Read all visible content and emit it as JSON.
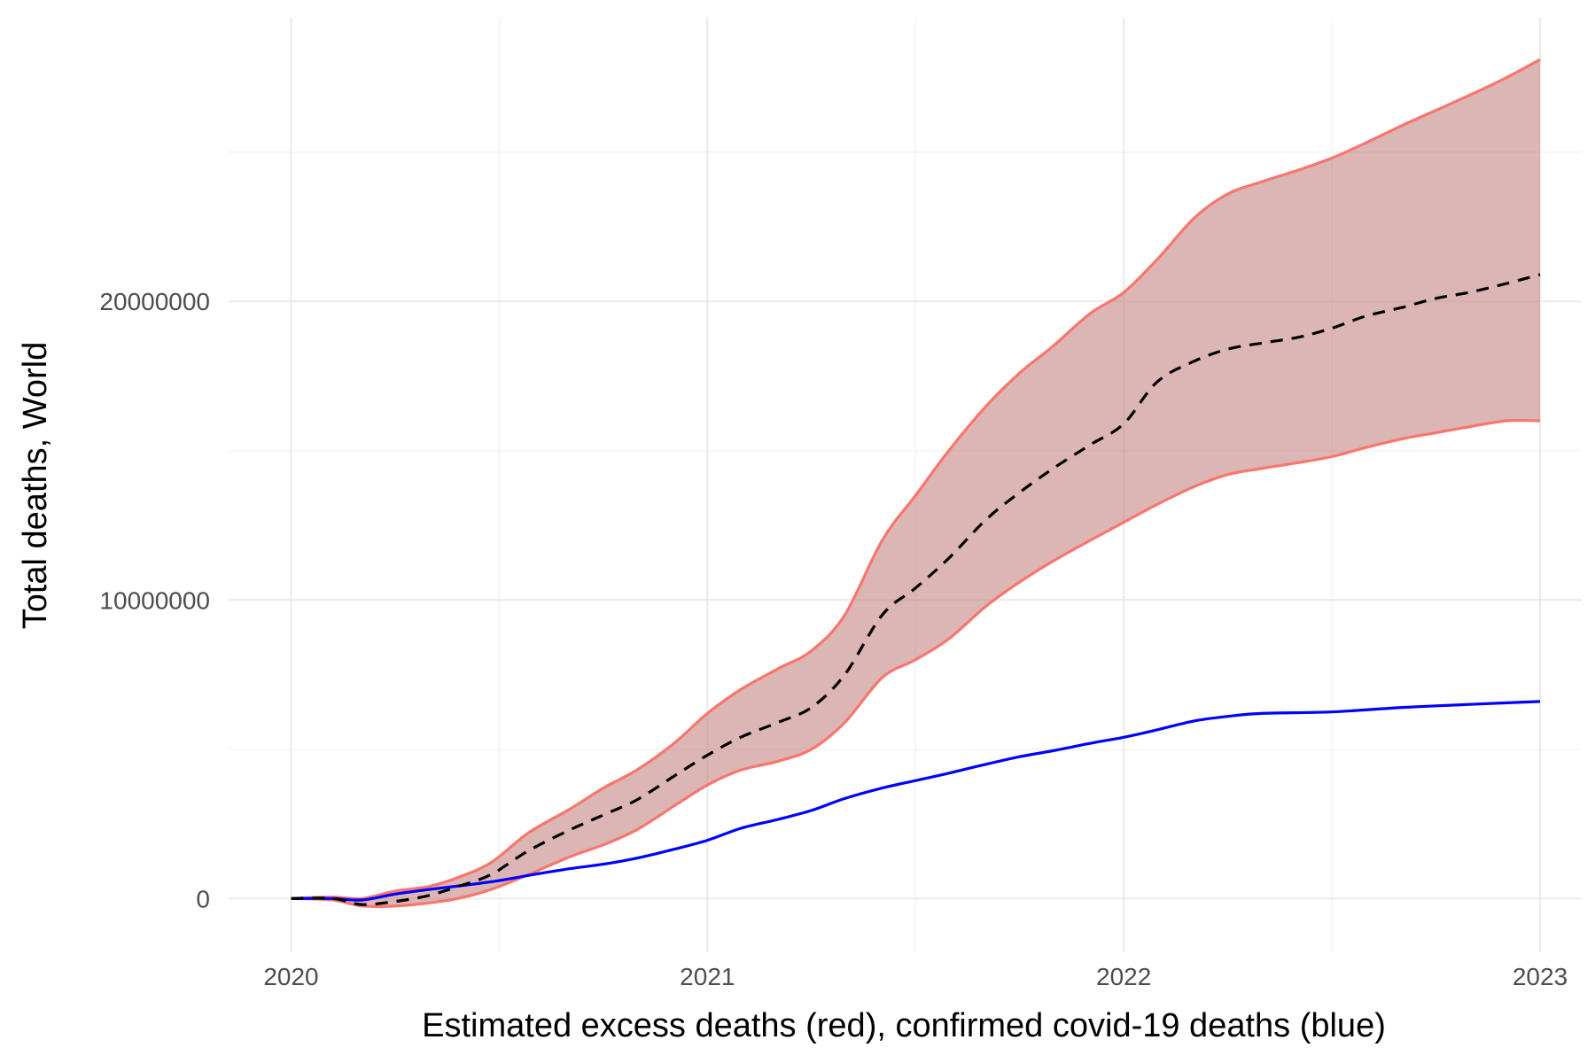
{
  "chart_data": {
    "type": "line",
    "xlabel": "Estimated excess deaths (red), confirmed covid-19 deaths (blue)",
    "ylabel": "Total deaths, World",
    "xlim": [
      2019.85,
      2023.1
    ],
    "ylim": [
      -1800000,
      29500000
    ],
    "x_ticks": [
      2020,
      2021,
      2022,
      2023
    ],
    "x_tick_labels": [
      "2020",
      "2021",
      "2022",
      "2023"
    ],
    "y_ticks": [
      0,
      10000000,
      20000000
    ],
    "y_tick_labels": [
      "0",
      "10000000",
      "20000000"
    ],
    "x_minor": [
      2020.5,
      2021.5,
      2022.5
    ],
    "y_minor": [
      5000000,
      15000000,
      25000000
    ],
    "grid": true,
    "legend": "none",
    "colors": {
      "band_fill": "#c48383",
      "band_edge": "#f8766d",
      "central": "#000000",
      "confirmed": "#0000ff"
    },
    "series": [
      {
        "role": "excess-upper",
        "x": [
          2020.0,
          2020.1,
          2020.17,
          2020.25,
          2020.33,
          2020.4,
          2020.48,
          2020.57,
          2020.67,
          2020.75,
          2020.83,
          2020.92,
          2021.0,
          2021.08,
          2021.17,
          2021.25,
          2021.33,
          2021.42,
          2021.5,
          2021.58,
          2021.67,
          2021.75,
          2021.83,
          2021.92,
          2022.0,
          2022.08,
          2022.17,
          2022.25,
          2022.33,
          2022.42,
          2022.5,
          2022.58,
          2022.67,
          2022.75,
          2022.83,
          2022.92,
          2023.0
        ],
        "values": [
          0,
          50000,
          0,
          250000,
          400000,
          700000,
          1200000,
          2200000,
          3000000,
          3700000,
          4300000,
          5200000,
          6200000,
          7000000,
          7700000,
          8300000,
          9500000,
          12000000,
          13500000,
          15000000,
          16500000,
          17600000,
          18500000,
          19600000,
          20300000,
          21400000,
          22800000,
          23600000,
          24000000,
          24400000,
          24800000,
          25300000,
          25900000,
          26400000,
          26900000,
          27500000,
          28100000
        ]
      },
      {
        "role": "excess-central",
        "x": [
          2020.0,
          2020.1,
          2020.17,
          2020.25,
          2020.33,
          2020.4,
          2020.48,
          2020.57,
          2020.67,
          2020.75,
          2020.83,
          2020.92,
          2021.0,
          2021.08,
          2021.17,
          2021.25,
          2021.33,
          2021.42,
          2021.5,
          2021.58,
          2021.67,
          2021.75,
          2021.83,
          2021.92,
          2022.0,
          2022.08,
          2022.17,
          2022.25,
          2022.33,
          2022.42,
          2022.5,
          2022.58,
          2022.67,
          2022.75,
          2022.83,
          2022.92,
          2023.0
        ],
        "values": [
          0,
          0,
          -200000,
          -100000,
          100000,
          400000,
          800000,
          1600000,
          2300000,
          2800000,
          3300000,
          4100000,
          4800000,
          5400000,
          5900000,
          6400000,
          7500000,
          9500000,
          10400000,
          11400000,
          12700000,
          13600000,
          14400000,
          15200000,
          15900000,
          17300000,
          18000000,
          18400000,
          18600000,
          18800000,
          19100000,
          19500000,
          19800000,
          20100000,
          20300000,
          20600000,
          20900000
        ]
      },
      {
        "role": "excess-lower",
        "x": [
          2020.0,
          2020.1,
          2020.17,
          2020.25,
          2020.33,
          2020.4,
          2020.48,
          2020.57,
          2020.67,
          2020.75,
          2020.83,
          2020.92,
          2021.0,
          2021.08,
          2021.17,
          2021.25,
          2021.33,
          2021.42,
          2021.5,
          2021.58,
          2021.67,
          2021.75,
          2021.83,
          2021.92,
          2022.0,
          2022.08,
          2022.17,
          2022.25,
          2022.33,
          2022.42,
          2022.5,
          2022.58,
          2022.67,
          2022.75,
          2022.83,
          2022.92,
          2023.0
        ],
        "values": [
          0,
          -50000,
          -250000,
          -250000,
          -150000,
          0,
          300000,
          800000,
          1400000,
          1800000,
          2300000,
          3100000,
          3800000,
          4300000,
          4600000,
          5000000,
          5900000,
          7400000,
          8000000,
          8700000,
          9800000,
          10600000,
          11300000,
          12000000,
          12600000,
          13200000,
          13800000,
          14200000,
          14400000,
          14600000,
          14800000,
          15100000,
          15400000,
          15600000,
          15800000,
          16000000,
          16000000
        ]
      },
      {
        "role": "confirmed",
        "x": [
          2020.0,
          2020.1,
          2020.17,
          2020.25,
          2020.33,
          2020.42,
          2020.5,
          2020.58,
          2020.67,
          2020.75,
          2020.83,
          2020.92,
          2021.0,
          2021.08,
          2021.17,
          2021.25,
          2021.33,
          2021.42,
          2021.5,
          2021.58,
          2021.67,
          2021.75,
          2021.83,
          2021.92,
          2022.0,
          2022.08,
          2022.17,
          2022.25,
          2022.33,
          2022.5,
          2022.67,
          2022.83,
          2023.0
        ],
        "values": [
          0,
          0,
          -50000,
          150000,
          300000,
          450000,
          600000,
          800000,
          1000000,
          1150000,
          1350000,
          1650000,
          1950000,
          2350000,
          2650000,
          2950000,
          3350000,
          3700000,
          3950000,
          4200000,
          4500000,
          4750000,
          4950000,
          5200000,
          5400000,
          5650000,
          5950000,
          6100000,
          6200000,
          6250000,
          6400000,
          6500000,
          6600000
        ]
      }
    ]
  }
}
